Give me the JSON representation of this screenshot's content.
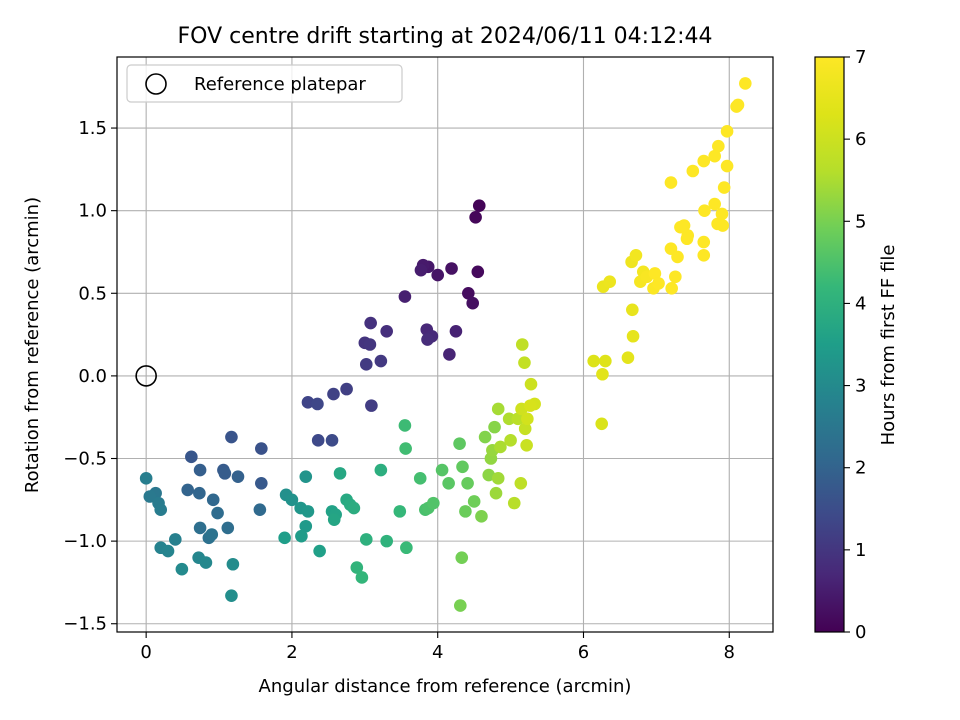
{
  "chart_data": {
    "type": "scatter",
    "title": "FOV centre drift starting at 2024/06/11 04:12:44",
    "xlabel": "Angular distance from reference (arcmin)",
    "ylabel": "Rotation from reference (arcmin)",
    "xlim": [
      -0.4,
      8.6
    ],
    "ylim": [
      -1.55,
      1.93
    ],
    "xticks": [
      0,
      2,
      4,
      6,
      8
    ],
    "xtick_labels": [
      "0",
      "2",
      "4",
      "6",
      "8"
    ],
    "yticks": [
      -1.5,
      -1.0,
      -0.5,
      0.0,
      0.5,
      1.0,
      1.5
    ],
    "ytick_labels": [
      "−1.5",
      "−1.0",
      "−0.5",
      "0.0",
      "0.5",
      "1.0",
      "1.5"
    ],
    "grid": true,
    "legend": {
      "placement": "upper-left",
      "entries": [
        "Reference platepar"
      ]
    },
    "colorbar": {
      "label": "Hours from first FF file",
      "range": [
        0,
        7
      ],
      "ticks": [
        0,
        1,
        2,
        3,
        4,
        5,
        6,
        7
      ],
      "tick_labels": [
        "0",
        "1",
        "2",
        "3",
        "4",
        "5",
        "6",
        "7"
      ],
      "colormap": "viridis"
    },
    "reference_point": {
      "x": 0,
      "y": 0
    },
    "series": [
      {
        "points": [
          [
            4.57,
            1.03,
            0.05
          ],
          [
            4.52,
            0.96,
            0.1
          ],
          [
            4.55,
            0.63,
            0.15
          ],
          [
            4.42,
            0.5,
            0.2
          ],
          [
            4.48,
            0.44,
            0.25
          ],
          [
            4.19,
            0.65,
            0.3
          ],
          [
            4.0,
            0.61,
            0.35
          ],
          [
            3.87,
            0.66,
            0.4
          ],
          [
            3.8,
            0.67,
            0.45
          ],
          [
            3.77,
            0.64,
            0.5
          ],
          [
            3.55,
            0.48,
            0.55
          ],
          [
            4.25,
            0.27,
            0.6
          ],
          [
            4.16,
            0.13,
            0.65
          ],
          [
            3.85,
            0.28,
            0.7
          ],
          [
            3.92,
            0.24,
            0.75
          ],
          [
            3.86,
            0.22,
            0.8
          ],
          [
            3.3,
            0.27,
            0.85
          ],
          [
            3.08,
            0.32,
            0.9
          ],
          [
            3.0,
            0.2,
            0.95
          ],
          [
            3.07,
            0.19,
            1.0
          ],
          [
            3.22,
            0.09,
            1.05
          ],
          [
            3.02,
            0.07,
            1.1
          ],
          [
            3.09,
            -0.18,
            1.15
          ],
          [
            2.75,
            -0.08,
            1.2
          ],
          [
            2.57,
            -0.11,
            1.25
          ],
          [
            2.22,
            -0.16,
            1.3
          ],
          [
            2.35,
            -0.17,
            1.35
          ],
          [
            2.36,
            -0.39,
            1.4
          ],
          [
            2.55,
            -0.39,
            1.45
          ],
          [
            1.58,
            -0.44,
            1.6
          ],
          [
            1.17,
            -0.37,
            1.65
          ],
          [
            0.62,
            -0.49,
            1.7
          ],
          [
            1.58,
            -0.65,
            1.75
          ],
          [
            1.06,
            -0.57,
            1.8
          ],
          [
            1.08,
            -0.59,
            1.85
          ],
          [
            0.74,
            -0.57,
            1.9
          ],
          [
            1.26,
            -0.61,
            1.95
          ],
          [
            0.57,
            -0.69,
            2.0
          ],
          [
            0.73,
            -0.71,
            2.05
          ],
          [
            0.92,
            -0.75,
            2.1
          ],
          [
            1.56,
            -0.81,
            2.15
          ],
          [
            0.98,
            -0.83,
            2.2
          ],
          [
            1.12,
            -0.92,
            2.25
          ],
          [
            0.74,
            -0.92,
            2.3
          ],
          [
            0.86,
            -0.98,
            2.35
          ],
          [
            0.9,
            -0.96,
            2.4
          ],
          [
            0.13,
            -0.71,
            2.5
          ],
          [
            0.05,
            -0.73,
            2.55
          ],
          [
            0.17,
            -0.77,
            2.6
          ],
          [
            0.2,
            -0.81,
            2.65
          ],
          [
            0.0,
            -0.62,
            2.7
          ],
          [
            0.4,
            -0.99,
            2.75
          ],
          [
            0.2,
            -1.04,
            2.8
          ],
          [
            0.3,
            -1.06,
            2.85
          ],
          [
            0.72,
            -1.1,
            2.9
          ],
          [
            0.82,
            -1.13,
            2.95
          ],
          [
            0.49,
            -1.17,
            3.0
          ],
          [
            1.19,
            -1.14,
            3.05
          ],
          [
            1.17,
            -1.33,
            3.1
          ],
          [
            1.92,
            -0.72,
            3.15
          ],
          [
            2.0,
            -0.75,
            3.2
          ],
          [
            2.19,
            -0.61,
            3.25
          ],
          [
            2.12,
            -0.8,
            3.3
          ],
          [
            2.22,
            -0.82,
            3.35
          ],
          [
            2.19,
            -0.91,
            3.4
          ],
          [
            2.13,
            -0.97,
            3.45
          ],
          [
            1.9,
            -0.98,
            3.5
          ],
          [
            2.38,
            -1.06,
            3.55
          ],
          [
            2.55,
            -0.82,
            3.6
          ],
          [
            2.6,
            -0.84,
            3.65
          ],
          [
            2.58,
            -0.87,
            3.7
          ],
          [
            2.66,
            -0.59,
            3.75
          ],
          [
            2.75,
            -0.75,
            3.8
          ],
          [
            2.8,
            -0.78,
            3.85
          ],
          [
            2.85,
            -0.8,
            3.9
          ],
          [
            3.22,
            -0.57,
            3.95
          ],
          [
            3.02,
            -0.99,
            4.0
          ],
          [
            3.3,
            -1.0,
            4.05
          ],
          [
            2.89,
            -1.16,
            4.1
          ],
          [
            2.96,
            -1.22,
            4.15
          ],
          [
            3.48,
            -0.82,
            4.2
          ],
          [
            3.57,
            -1.04,
            4.25
          ],
          [
            3.55,
            -0.3,
            4.3
          ],
          [
            3.56,
            -0.44,
            4.35
          ],
          [
            3.76,
            -0.62,
            4.4
          ],
          [
            3.83,
            -0.81,
            4.45
          ],
          [
            3.87,
            -0.8,
            4.5
          ],
          [
            3.94,
            -0.77,
            4.55
          ],
          [
            4.06,
            -0.57,
            4.6
          ],
          [
            4.15,
            -0.65,
            4.65
          ],
          [
            4.3,
            -0.41,
            4.7
          ],
          [
            4.34,
            -0.55,
            4.75
          ],
          [
            4.41,
            -0.65,
            4.8
          ],
          [
            4.38,
            -0.82,
            4.85
          ],
          [
            4.5,
            -0.76,
            4.9
          ],
          [
            4.33,
            -1.1,
            4.95
          ],
          [
            4.31,
            -1.39,
            5.0
          ],
          [
            4.6,
            -0.85,
            5.05
          ],
          [
            4.65,
            -0.37,
            5.1
          ],
          [
            4.78,
            -0.31,
            5.15
          ],
          [
            4.7,
            -0.6,
            5.2
          ],
          [
            4.73,
            -0.5,
            5.25
          ],
          [
            4.75,
            -0.45,
            5.3
          ],
          [
            4.8,
            -0.71,
            5.35
          ],
          [
            4.83,
            -0.62,
            5.4
          ],
          [
            4.83,
            -0.2,
            5.45
          ],
          [
            4.86,
            -0.43,
            5.5
          ],
          [
            4.98,
            -0.26,
            5.55
          ],
          [
            5.0,
            -0.39,
            5.6
          ],
          [
            5.05,
            -0.77,
            5.65
          ],
          [
            5.1,
            -0.26,
            5.7
          ],
          [
            5.14,
            -0.65,
            5.75
          ],
          [
            5.16,
            0.19,
            5.8
          ],
          [
            5.19,
            0.08,
            5.85
          ],
          [
            5.2,
            -0.32,
            5.9
          ],
          [
            5.22,
            -0.42,
            5.95
          ],
          [
            5.28,
            -0.05,
            6.0
          ],
          [
            5.15,
            -0.2,
            6.05
          ],
          [
            5.23,
            -0.26,
            6.1
          ],
          [
            5.33,
            -0.17,
            6.15
          ],
          [
            5.27,
            -0.18,
            6.2
          ],
          [
            6.25,
            -0.29,
            6.25
          ],
          [
            6.14,
            0.09,
            6.3
          ],
          [
            6.3,
            0.09,
            6.35
          ],
          [
            6.26,
            0.01,
            6.4
          ],
          [
            6.61,
            0.11,
            6.45
          ],
          [
            6.68,
            0.24,
            6.5
          ],
          [
            6.67,
            0.4,
            6.55
          ],
          [
            6.27,
            0.54,
            6.6
          ],
          [
            6.36,
            0.57,
            6.65
          ],
          [
            6.66,
            0.69,
            6.7
          ],
          [
            6.72,
            0.73,
            6.75
          ],
          [
            6.82,
            0.63,
            6.8
          ],
          [
            6.78,
            0.57,
            6.85
          ],
          [
            6.87,
            0.6,
            6.9
          ],
          [
            6.96,
            0.53,
            6.95
          ],
          [
            6.98,
            0.62,
            7.0
          ],
          [
            7.03,
            0.56,
            7.05
          ],
          [
            7.21,
            0.53,
            7.1
          ],
          [
            7.26,
            0.6,
            7.15
          ],
          [
            7.2,
            0.77,
            7.2
          ],
          [
            7.29,
            0.72,
            7.25
          ],
          [
            7.33,
            0.9,
            7.3
          ],
          [
            7.43,
            0.85,
            7.35
          ],
          [
            7.38,
            0.91,
            7.4
          ],
          [
            7.42,
            0.83,
            7.45
          ],
          [
            7.65,
            0.73,
            7.5
          ],
          [
            7.65,
            0.81,
            7.55
          ],
          [
            7.66,
            1.0,
            7.6
          ],
          [
            7.8,
            1.04,
            7.65
          ],
          [
            7.84,
            0.92,
            7.7
          ],
          [
            7.91,
            0.91,
            7.75
          ],
          [
            7.9,
            0.98,
            7.8
          ],
          [
            7.2,
            1.17,
            7.85
          ],
          [
            7.5,
            1.24,
            7.9
          ],
          [
            7.65,
            1.3,
            7.95
          ],
          [
            7.8,
            1.33,
            8.0
          ],
          [
            7.85,
            1.39,
            8.05
          ],
          [
            7.97,
            1.27,
            8.1
          ],
          [
            7.97,
            1.48,
            8.15
          ],
          [
            7.93,
            1.14,
            8.2
          ],
          [
            8.1,
            1.63,
            8.25
          ],
          [
            8.12,
            1.64,
            8.3
          ],
          [
            8.22,
            1.77,
            8.35
          ]
        ]
      }
    ]
  }
}
